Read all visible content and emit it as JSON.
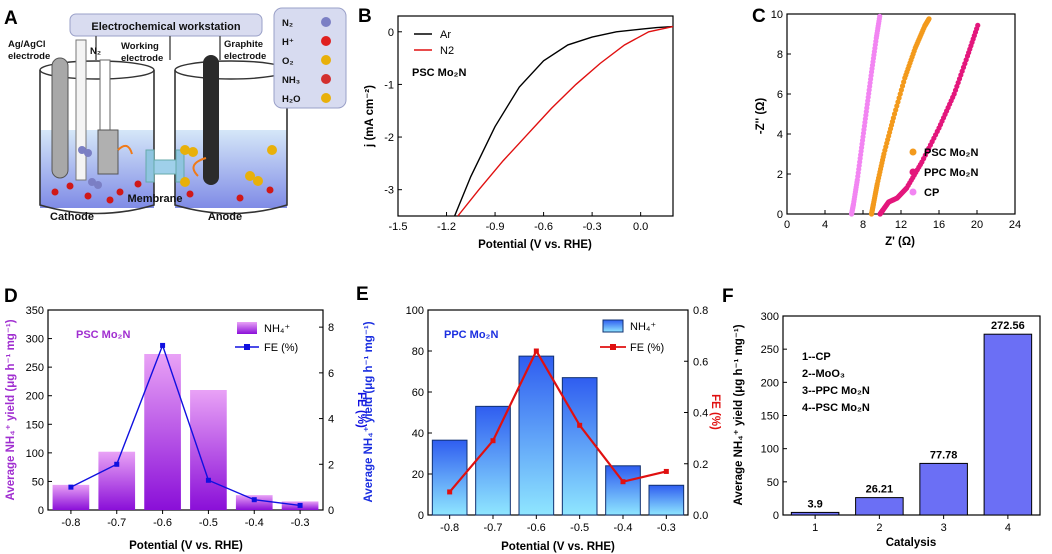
{
  "figure": {
    "panel_labels": [
      "A",
      "B",
      "C",
      "D",
      "E",
      "F"
    ]
  },
  "schematic": {
    "title": "Electrochemical workstation",
    "ref_electrode": [
      "Ag/AgCl",
      "electrode"
    ],
    "gas_inlet": "N₂",
    "working_electrode": [
      "Working",
      "electrode"
    ],
    "counter_electrode": [
      "Graphite",
      "electrode"
    ],
    "cathode": "Cathode",
    "membrane": "Membrane",
    "anode": "Anode",
    "legend": [
      {
        "label": "N₂",
        "color": "#7b7fc4"
      },
      {
        "label": "H⁺",
        "color": "#e02020"
      },
      {
        "label": "O₂",
        "color": "#e8b00a"
      },
      {
        "label": "NH₃",
        "color": "#d32f2f"
      },
      {
        "label": "H₂O",
        "color": "#e8b00a"
      }
    ]
  },
  "chart_data": [
    {
      "panel": "B",
      "type": "line",
      "title": "PSC Mo₂N",
      "xlabel": "Potential (V vs. RHE)",
      "ylabel": "j (mA cm⁻²)",
      "xlim": [
        -1.5,
        0.2
      ],
      "ylim": [
        -3.5,
        0.3
      ],
      "xticks": [
        "-1.5",
        "-1.2",
        "-0.9",
        "-0.6",
        "-0.3",
        "0.0"
      ],
      "yticks": [
        "0",
        "-1",
        "-2",
        "-3"
      ],
      "legend": "top-left",
      "series": [
        {
          "name": "Ar",
          "color": "#000000",
          "x": [
            -1.15,
            -1.05,
            -0.9,
            -0.75,
            -0.6,
            -0.45,
            -0.3,
            -0.15,
            0.0,
            0.1,
            0.2
          ],
          "y": [
            -3.5,
            -2.75,
            -1.8,
            -1.05,
            -0.55,
            -0.25,
            -0.1,
            0.0,
            0.05,
            0.08,
            0.1
          ]
        },
        {
          "name": "N2",
          "color": "#e01010",
          "x": [
            -1.13,
            -1.0,
            -0.85,
            -0.7,
            -0.55,
            -0.4,
            -0.25,
            -0.1,
            0.05,
            0.2
          ],
          "y": [
            -3.5,
            -3.0,
            -2.45,
            -1.95,
            -1.45,
            -1.0,
            -0.6,
            -0.25,
            0.0,
            0.1
          ]
        }
      ]
    },
    {
      "panel": "C",
      "type": "scatter",
      "xlabel": "Z' (Ω)",
      "ylabel": "-Z'' (Ω)",
      "xlim": [
        0,
        24
      ],
      "ylim": [
        0,
        10
      ],
      "xticks": [
        "0",
        "4",
        "8",
        "12",
        "16",
        "20",
        "24"
      ],
      "yticks": [
        "0",
        "2",
        "4",
        "6",
        "8",
        "10"
      ],
      "legend": "bottom-right",
      "series": [
        {
          "name": "PSC Mo₂N",
          "color": "#f39a1c",
          "x": [
            8.9,
            9.1,
            9.5,
            10.2,
            11.2,
            12.4,
            13.5,
            14.5,
            15.0
          ],
          "y": [
            0.0,
            0.5,
            1.5,
            3.0,
            4.8,
            6.8,
            8.3,
            9.4,
            9.8
          ]
        },
        {
          "name": "PPC Mo₂N",
          "color": "#e3177c",
          "x": [
            9.8,
            10.1,
            10.7,
            11.6,
            12.6,
            14.2,
            16.0,
            17.6,
            19.0,
            20.2
          ],
          "y": [
            0.0,
            0.2,
            0.6,
            0.8,
            1.3,
            2.6,
            4.3,
            6.0,
            7.9,
            9.6
          ]
        },
        {
          "name": "CP",
          "color": "#f285f2",
          "x": [
            6.8,
            7.0,
            7.4,
            7.9,
            8.4,
            8.9,
            9.4,
            9.8
          ],
          "y": [
            0.0,
            0.5,
            1.7,
            3.5,
            5.3,
            7.1,
            8.8,
            10.0
          ]
        }
      ]
    },
    {
      "panel": "D",
      "type": "bar",
      "title": "PSC Mo₂N",
      "categories": [
        "-0.8",
        "-0.7",
        "-0.6",
        "-0.5",
        "-0.4",
        "-0.3"
      ],
      "xlabel": "Potential (V vs. RHE)",
      "ylabel": "Average NH₄⁺ yield (μg h⁻¹ mg⁻¹)",
      "ylabel2": "FE (%)",
      "ylim": [
        0,
        350
      ],
      "y2lim": [
        0,
        8.75
      ],
      "yticks": [
        "0",
        "50",
        "100",
        "150",
        "200",
        "250",
        "300",
        "350"
      ],
      "y2ticks": [
        "0",
        "2",
        "4",
        "6",
        "8"
      ],
      "legend": "top-right",
      "bar_series": {
        "name": "NH₄⁺",
        "values": [
          44,
          102,
          273,
          210,
          26,
          15
        ]
      },
      "line_series": {
        "name": "FE (%)",
        "color": "#1010e0",
        "values": [
          1.0,
          2.0,
          7.2,
          1.3,
          0.45,
          0.2
        ]
      }
    },
    {
      "panel": "E",
      "type": "bar",
      "title": "PPC Mo₂N",
      "categories": [
        "-0.8",
        "-0.7",
        "-0.6",
        "-0.5",
        "-0.4",
        "-0.3"
      ],
      "xlabel": "Potential (V vs. RHE)",
      "ylabel": "Average NH₄⁺ yield (μg h⁻¹ mg⁻¹)",
      "ylabel2": "FE (%)",
      "ylim": [
        0,
        100
      ],
      "y2lim": [
        0,
        0.8
      ],
      "yticks": [
        "0",
        "20",
        "40",
        "60",
        "80",
        "100"
      ],
      "y2ticks": [
        "0.0",
        "0.2",
        "0.4",
        "0.6",
        "0.8"
      ],
      "legend": "top-right",
      "bar_series": {
        "name": "NH₄⁺",
        "values": [
          36.5,
          53,
          77.5,
          67,
          24,
          14.5
        ]
      },
      "line_series": {
        "name": "FE (%)",
        "color": "#e01010",
        "values": [
          0.09,
          0.29,
          0.64,
          0.35,
          0.13,
          0.17
        ]
      }
    },
    {
      "panel": "F",
      "type": "bar",
      "categories": [
        "1",
        "2",
        "3",
        "4"
      ],
      "values": [
        3.9,
        26.21,
        77.78,
        272.56
      ],
      "value_labels": [
        "3.9",
        "26.21",
        "77.78",
        "272.56"
      ],
      "xlabel": "Catalysis",
      "ylabel": "Average NH₄⁺ yield (μg h⁻¹ mg⁻¹)",
      "ylim": [
        0,
        300
      ],
      "yticks": [
        "0",
        "50",
        "100",
        "150",
        "200",
        "250",
        "300"
      ],
      "key": [
        "1--CP",
        "2--MoO₃",
        "3--PPC Mo₂N",
        "4--PSC Mo₂N"
      ]
    }
  ]
}
